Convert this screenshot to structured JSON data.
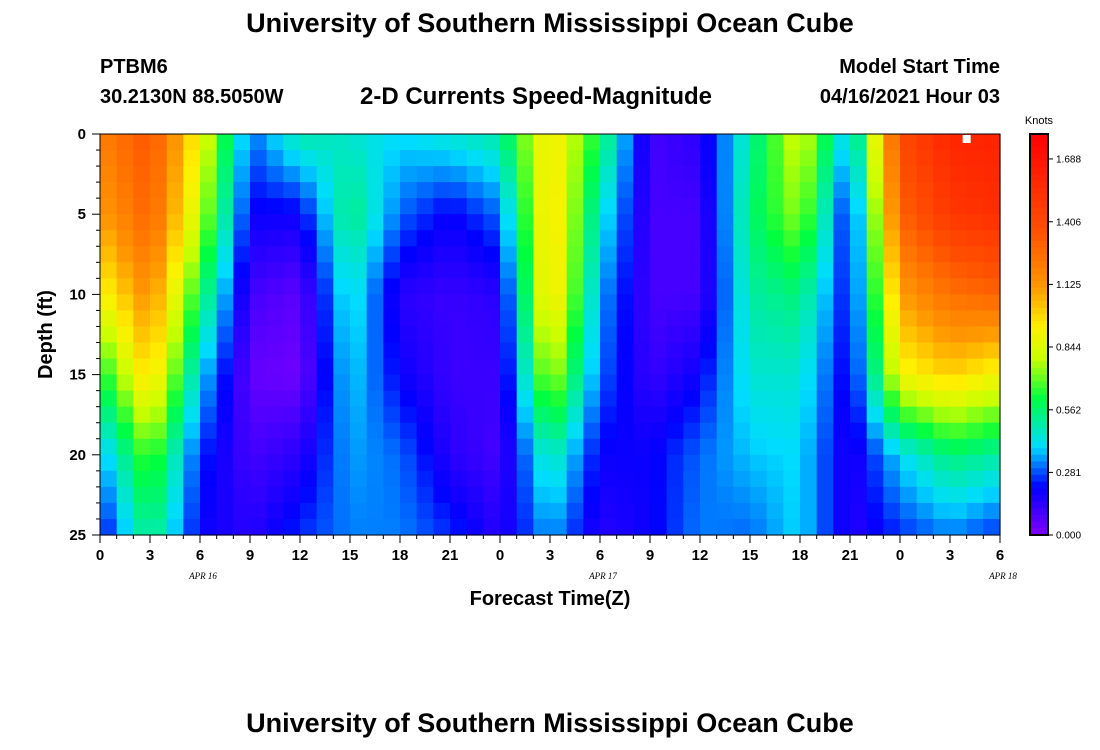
{
  "header": {
    "title": "University of Southern Mississippi Ocean Cube",
    "station_id": "PTBM6",
    "coordinates": "30.2130N  88.5050W",
    "subtitle": "2-D Currents Speed-Magnitude",
    "model_start_label": "Model Start Time",
    "model_start_value": "04/16/2021 Hour 03"
  },
  "footer": {
    "title": "University of Southern Mississippi Ocean Cube"
  },
  "chart_data": {
    "type": "heatmap",
    "title": "2-D Currents Speed-Magnitude",
    "xlabel": "Forecast Time(Z)",
    "ylabel": "Depth (ft)",
    "x_tick_labels": [
      "0",
      "3",
      "6",
      "9",
      "12",
      "15",
      "18",
      "21",
      "0",
      "3",
      "6",
      "9",
      "12",
      "15",
      "18",
      "21",
      "0",
      "3",
      "6"
    ],
    "date_labels": [
      "APR 16",
      "APR 17",
      "APR 18"
    ],
    "y_tick_labels": [
      "0",
      "5",
      "10",
      "15",
      "20",
      "25"
    ],
    "ylim": [
      25,
      0
    ],
    "colorbar": {
      "unit": "Knots",
      "tick_labels": [
        "1.688",
        "1.406",
        "1.125",
        "0.844",
        "0.562",
        "0.281",
        "0.000"
      ],
      "range": [
        0,
        1.8
      ]
    },
    "depths_ft": [
      0,
      5,
      10,
      15,
      20,
      25
    ],
    "hours": [
      0,
      3,
      6,
      9,
      12,
      15,
      18,
      21,
      24,
      27,
      30,
      33,
      36,
      39,
      42,
      45,
      48,
      51,
      54
    ],
    "values_knots": [
      [
        1.2,
        1.35,
        0.9,
        0.3,
        0.5,
        0.45,
        0.4,
        0.45,
        0.5,
        0.95,
        0.6,
        0.1,
        0.15,
        0.5,
        0.85,
        0.35,
        1.4,
        1.6,
        1.62
      ],
      [
        1.1,
        1.3,
        0.8,
        0.2,
        0.2,
        0.55,
        0.3,
        0.2,
        0.3,
        1.0,
        0.45,
        0.1,
        0.1,
        0.55,
        0.75,
        0.2,
        1.3,
        1.5,
        1.55
      ],
      [
        0.9,
        1.15,
        0.6,
        0.1,
        0.06,
        0.45,
        0.15,
        0.12,
        0.15,
        1.0,
        0.35,
        0.1,
        0.1,
        0.5,
        0.55,
        0.2,
        1.1,
        1.25,
        1.3
      ],
      [
        0.6,
        1.0,
        0.4,
        0.05,
        0.03,
        0.4,
        0.2,
        0.12,
        0.12,
        0.8,
        0.3,
        0.12,
        0.2,
        0.45,
        0.45,
        0.18,
        0.9,
        1.0,
        0.9
      ],
      [
        0.35,
        0.7,
        0.25,
        0.1,
        0.15,
        0.35,
        0.3,
        0.15,
        0.1,
        0.5,
        0.2,
        0.2,
        0.3,
        0.38,
        0.4,
        0.15,
        0.4,
        0.55,
        0.5
      ],
      [
        0.2,
        0.55,
        0.2,
        0.15,
        0.25,
        0.32,
        0.32,
        0.25,
        0.15,
        0.35,
        0.15,
        0.2,
        0.32,
        0.3,
        0.4,
        0.15,
        0.25,
        0.32,
        0.25
      ]
    ],
    "annotation": "white marker near hour 52, depth 0"
  }
}
